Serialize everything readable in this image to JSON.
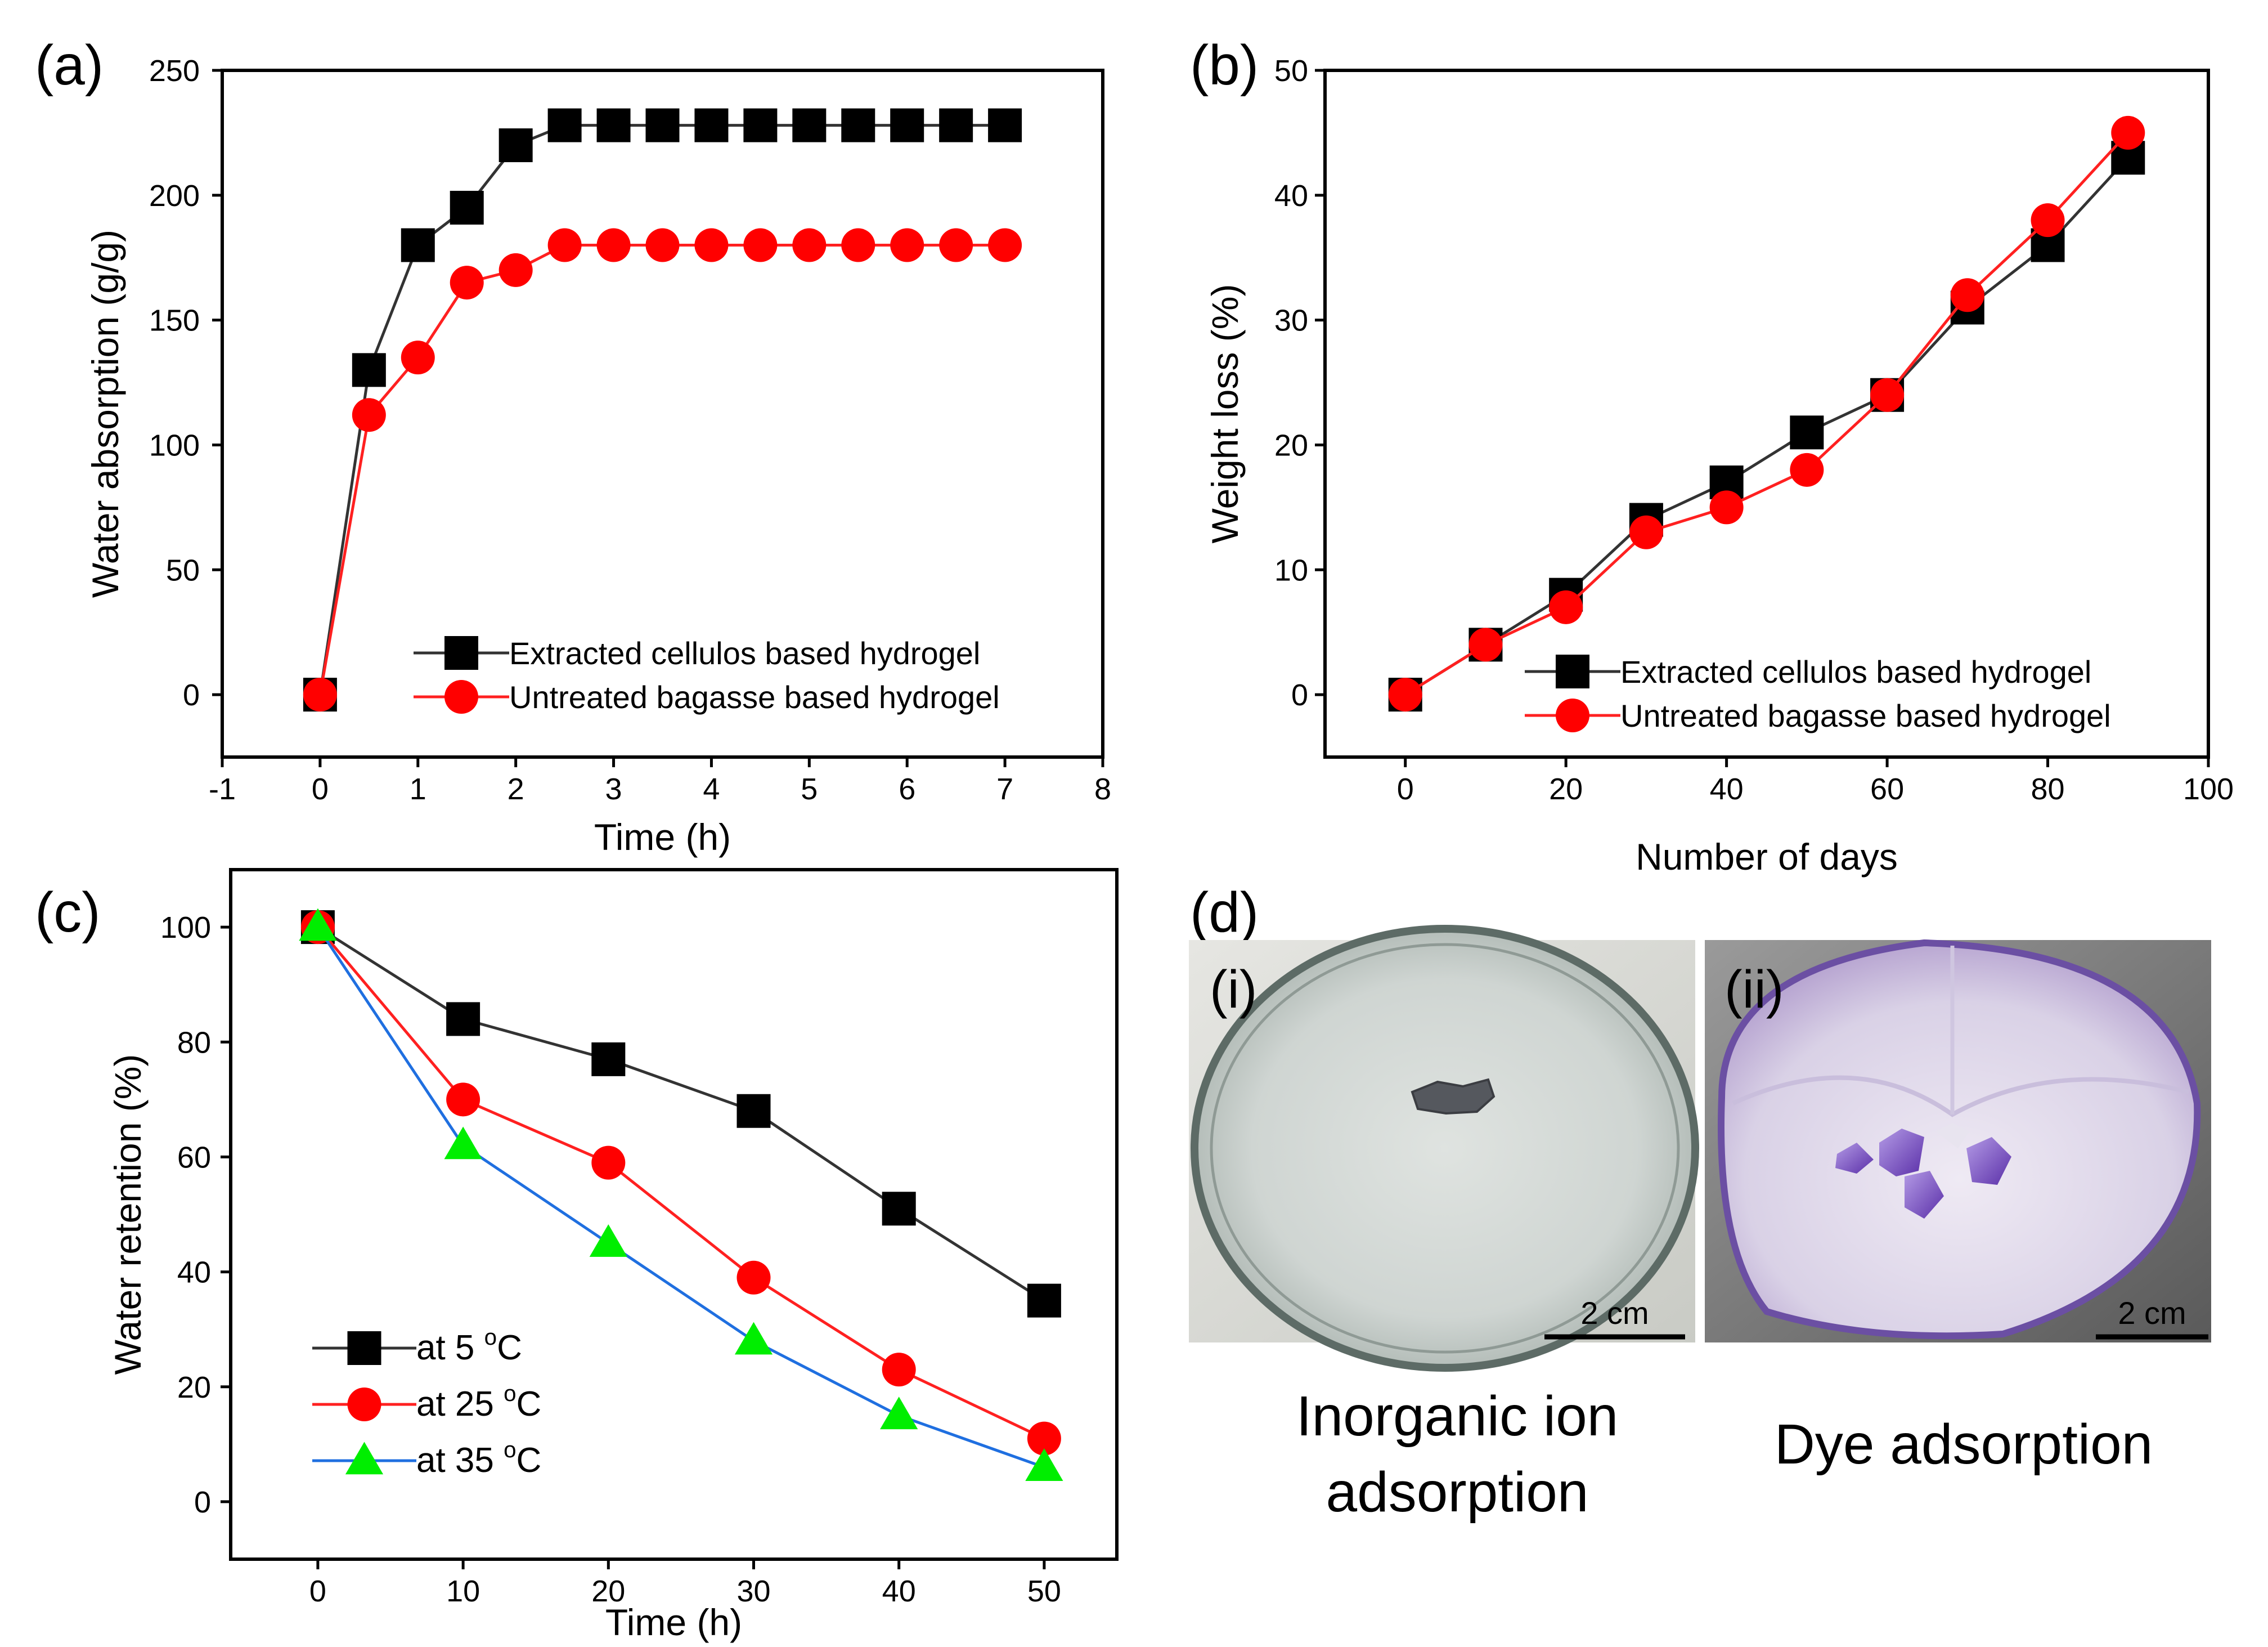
{
  "figure": {
    "panels": {
      "a": {
        "label": "(a)"
      },
      "b": {
        "label": "(b)"
      },
      "c": {
        "label": "(c)"
      },
      "d": {
        "label": "(d)"
      }
    },
    "photos": {
      "i": {
        "label": "(i)",
        "scale_bar": "2 cm",
        "caption_line1": "Inorganic ion",
        "caption_line2": "adsorption"
      },
      "ii": {
        "label": "(ii)",
        "scale_bar": "2 cm",
        "caption": "Dye adsorption"
      }
    }
  },
  "chart_data": [
    {
      "id": "a",
      "type": "line",
      "title": "",
      "xlabel": "Time (h)",
      "ylabel": "Water absorption (g/g)",
      "xlim": [
        -1,
        8
      ],
      "ylim": [
        -25,
        250
      ],
      "xticks": [
        -1,
        0,
        1,
        2,
        3,
        4,
        5,
        6,
        7,
        8
      ],
      "yticks": [
        0,
        50,
        100,
        150,
        200,
        250
      ],
      "legend": "bottom-right",
      "series": [
        {
          "name": "Extracted cellulos based hydrogel",
          "color": "#000000",
          "line": "#333333",
          "marker": "square",
          "x": [
            0,
            0.5,
            1,
            1.5,
            2,
            2.5,
            3,
            3.5,
            4,
            4.5,
            5,
            5.5,
            6,
            6.5,
            7
          ],
          "y": [
            0,
            130,
            180,
            195,
            220,
            228,
            228,
            228,
            228,
            228,
            228,
            228,
            228,
            228,
            228
          ]
        },
        {
          "name": "Untreated bagasse based hydrogel",
          "color": "#ff0000",
          "line": "#ff2020",
          "marker": "circle",
          "x": [
            0,
            0.5,
            1,
            1.5,
            2,
            2.5,
            3,
            3.5,
            4,
            4.5,
            5,
            5.5,
            6,
            6.5,
            7
          ],
          "y": [
            0,
            112,
            135,
            165,
            170,
            180,
            180,
            180,
            180,
            180,
            180,
            180,
            180,
            180,
            180
          ]
        }
      ]
    },
    {
      "id": "b",
      "type": "line",
      "title": "",
      "xlabel": "Number of days",
      "ylabel": "Weight loss (%)",
      "xlim": [
        -10,
        100
      ],
      "ylim": [
        -5,
        50
      ],
      "xticks": [
        0,
        20,
        40,
        60,
        80,
        100
      ],
      "yticks": [
        0,
        10,
        20,
        30,
        40,
        50
      ],
      "legend": "bottom-right",
      "series": [
        {
          "name": "Extracted cellulos based hydrogel",
          "color": "#000000",
          "line": "#333333",
          "marker": "square",
          "x": [
            0,
            10,
            20,
            30,
            40,
            50,
            60,
            70,
            80,
            90
          ],
          "y": [
            0,
            4,
            8,
            14,
            17,
            21,
            24,
            31,
            36,
            43
          ]
        },
        {
          "name": "Untreated bagasse based hydrogel",
          "color": "#ff0000",
          "line": "#ff2020",
          "marker": "circle",
          "x": [
            0,
            10,
            20,
            30,
            40,
            50,
            60,
            70,
            80,
            90
          ],
          "y": [
            0,
            4,
            7,
            13,
            15,
            18,
            24,
            32,
            38,
            45
          ]
        }
      ]
    },
    {
      "id": "c",
      "type": "line",
      "title": "",
      "xlabel": "Time (h)",
      "ylabel": "Water retention (%)",
      "xlim": [
        -6,
        55
      ],
      "ylim": [
        -10,
        110
      ],
      "xticks": [
        0,
        10,
        20,
        30,
        40,
        50
      ],
      "yticks": [
        0,
        20,
        40,
        60,
        80,
        100
      ],
      "legend": "bottom-left",
      "series": [
        {
          "name": "at 5 °C",
          "legend_prefix": "at 5 ",
          "legend_sup": "o",
          "legend_suffix": "C",
          "color": "#000000",
          "line": "#333333",
          "marker": "square",
          "x": [
            0,
            10,
            20,
            30,
            40,
            50
          ],
          "y": [
            100,
            84,
            77,
            68,
            51,
            35
          ]
        },
        {
          "name": "at 25 °C",
          "legend_prefix": "at 25 ",
          "legend_sup": "o",
          "legend_suffix": "C",
          "color": "#ff0000",
          "line": "#ff2020",
          "marker": "circle",
          "x": [
            0,
            10,
            20,
            30,
            40,
            50
          ],
          "y": [
            100,
            70,
            59,
            39,
            23,
            11
          ]
        },
        {
          "name": "at 35 °C",
          "legend_prefix": "at 35 ",
          "legend_sup": "o",
          "legend_suffix": "C",
          "color": "#00ee00",
          "line": "#1f6fe0",
          "marker": "triangle",
          "x": [
            0,
            10,
            20,
            30,
            40,
            50
          ],
          "y": [
            100,
            62,
            45,
            28,
            15,
            6
          ]
        }
      ]
    }
  ]
}
